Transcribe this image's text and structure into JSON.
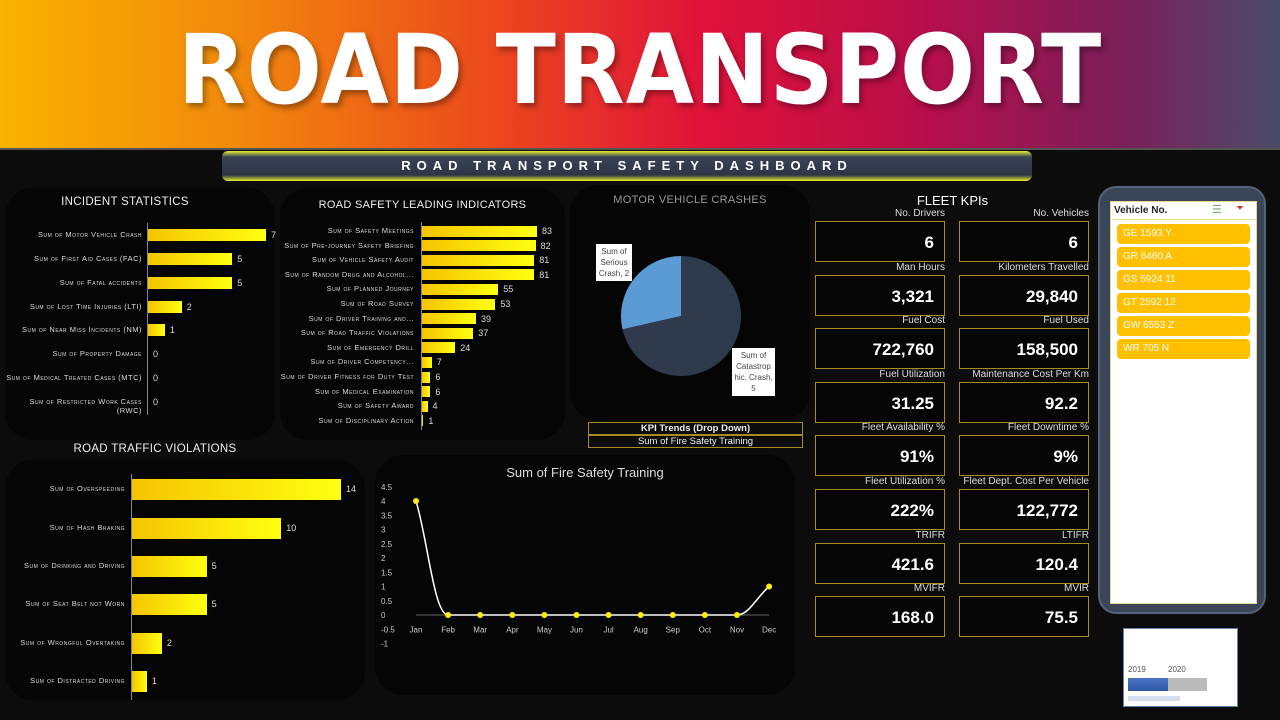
{
  "banner": {
    "title": "ROAD TRANSPORT"
  },
  "dashboard_title": "ROAD TRANSPORT SAFETY DASHBOARD",
  "chart_data": [
    {
      "type": "bar",
      "orientation": "horizontal",
      "title": "INCIDENT STATISTICS",
      "categories": [
        "Sum of Motor Vehicle Crash",
        "Sum of  First Aid Cases (FAC)",
        "Sum of Fatal accidents",
        "Sum of Lost Time Injuries  (LTI)",
        "Sum of Near Miss Incidents (NM)",
        "Sum of Property Damage",
        "Sum of Medical Treated Cases (MTC)",
        "Sum of Restricted Work Cases (RWC)"
      ],
      "values": [
        7,
        5,
        5,
        2,
        1,
        0,
        0,
        0
      ],
      "xlim": [
        0,
        7
      ]
    },
    {
      "type": "bar",
      "orientation": "horizontal",
      "title": "ROAD SAFETY LEADING INDICATORS",
      "categories": [
        "Sum of Safety Meetings",
        "Sum of Pre-journey Safety Briefing",
        "Sum of Vehicle Safety Audit",
        "Sum of  Random Drug and Alcohol...",
        "Sum of  Planned Journey",
        "Sum of Road Survey",
        "Sum of Driver Training and...",
        "Sum of  Road Traffic Violations",
        "Sum of Emergency Drill",
        "Sum of Driver Competency...",
        "Sum of  Driver Fitness for Duty Test",
        "Sum of Medical Examination",
        "Sum of Safety Award",
        "Sum of Disciplinary Action"
      ],
      "values": [
        83,
        82,
        81,
        81,
        55,
        53,
        39,
        37,
        24,
        7,
        6,
        6,
        4,
        1
      ],
      "xlim": [
        0,
        83
      ]
    },
    {
      "type": "pie",
      "title": "MOTOR VEHICLE CRASHES",
      "slices": [
        {
          "label": "Sum of Serious Crash, 2",
          "value": 2,
          "color": "#5b9bd5"
        },
        {
          "label": "Sum of Catastrophic. Crash, 5",
          "label_lines": [
            "Sum of",
            "Catastrop",
            "hic. Crash,",
            "5"
          ],
          "value": 5,
          "color": "#2f3a4c"
        }
      ]
    },
    {
      "type": "bar",
      "orientation": "horizontal",
      "title": "ROAD TRAFFIC VIOLATIONS",
      "categories": [
        "Sum of  Overspeeding",
        "Sum of  Hash Braking",
        "Sum of  Drinking and Driving",
        "Sum of  Seat Belt not Worn",
        "Sum of  Wrongful Overtaking",
        "Sum of  Distracted Driving"
      ],
      "values": [
        14,
        10,
        5,
        5,
        2,
        1
      ],
      "xlim": [
        0,
        14
      ]
    },
    {
      "type": "line",
      "title": "Sum of Fire Safety Training",
      "x": [
        "Jan",
        "Feb",
        "Mar",
        "Apr",
        "May",
        "Jun",
        "Jul",
        "Aug",
        "Sep",
        "Oct",
        "Nov",
        "Dec"
      ],
      "values": [
        4,
        0,
        0,
        0,
        0,
        0,
        0,
        0,
        0,
        0,
        0,
        1
      ],
      "yticks": [
        "4.5",
        "4",
        "3.5",
        "3",
        "2.5",
        "2",
        "1.5",
        "1",
        "0.5",
        "0",
        "-0.5",
        "-1"
      ],
      "ylim": [
        -1,
        4.5
      ],
      "color": "#ffffff",
      "marker_color": "#ffee00"
    }
  ],
  "kpi_dropdown": {
    "header": "KPI Trends (Drop Down)",
    "selected": "Sum of Fire Safety Training"
  },
  "fleet": {
    "title": "FLEET KPIs",
    "items": [
      {
        "label": "No. Drivers",
        "value": "6"
      },
      {
        "label": "No. Vehicles",
        "value": "6"
      },
      {
        "label": "Man Hours",
        "value": "3,321"
      },
      {
        "label": "Kilometers Travelled",
        "value": "29,840"
      },
      {
        "label": "Fuel Cost",
        "value": "722,760"
      },
      {
        "label": "Fuel Used",
        "value": "158,500"
      },
      {
        "label": "Fuel Utilization",
        "value": "31.25"
      },
      {
        "label": "Maintenance Cost Per Km",
        "value": "92.2"
      },
      {
        "label": "Fleet Availability %",
        "value": "91%"
      },
      {
        "label": "Fleet Downtime %",
        "value": "9%"
      },
      {
        "label": "Fleet Utilization %",
        "value": "222%"
      },
      {
        "label": "Fleet Dept. Cost Per Vehicle",
        "value": "122,772"
      },
      {
        "label": "TRIFR",
        "value": "421.6"
      },
      {
        "label": "LTIFR",
        "value": "120.4"
      },
      {
        "label": "MVIFR",
        "value": "168.0"
      },
      {
        "label": "MVIR",
        "value": "75.5"
      }
    ]
  },
  "slicer": {
    "title": "Vehicle No.",
    "items": [
      "GE 1593 Y",
      "GR 6460 A",
      "GS 5924 11",
      "GT 2592 12",
      "GW 6553 Z",
      "WR 705 N"
    ]
  },
  "timeline": {
    "years": [
      "2019",
      "2020"
    ],
    "selected": "2019"
  }
}
